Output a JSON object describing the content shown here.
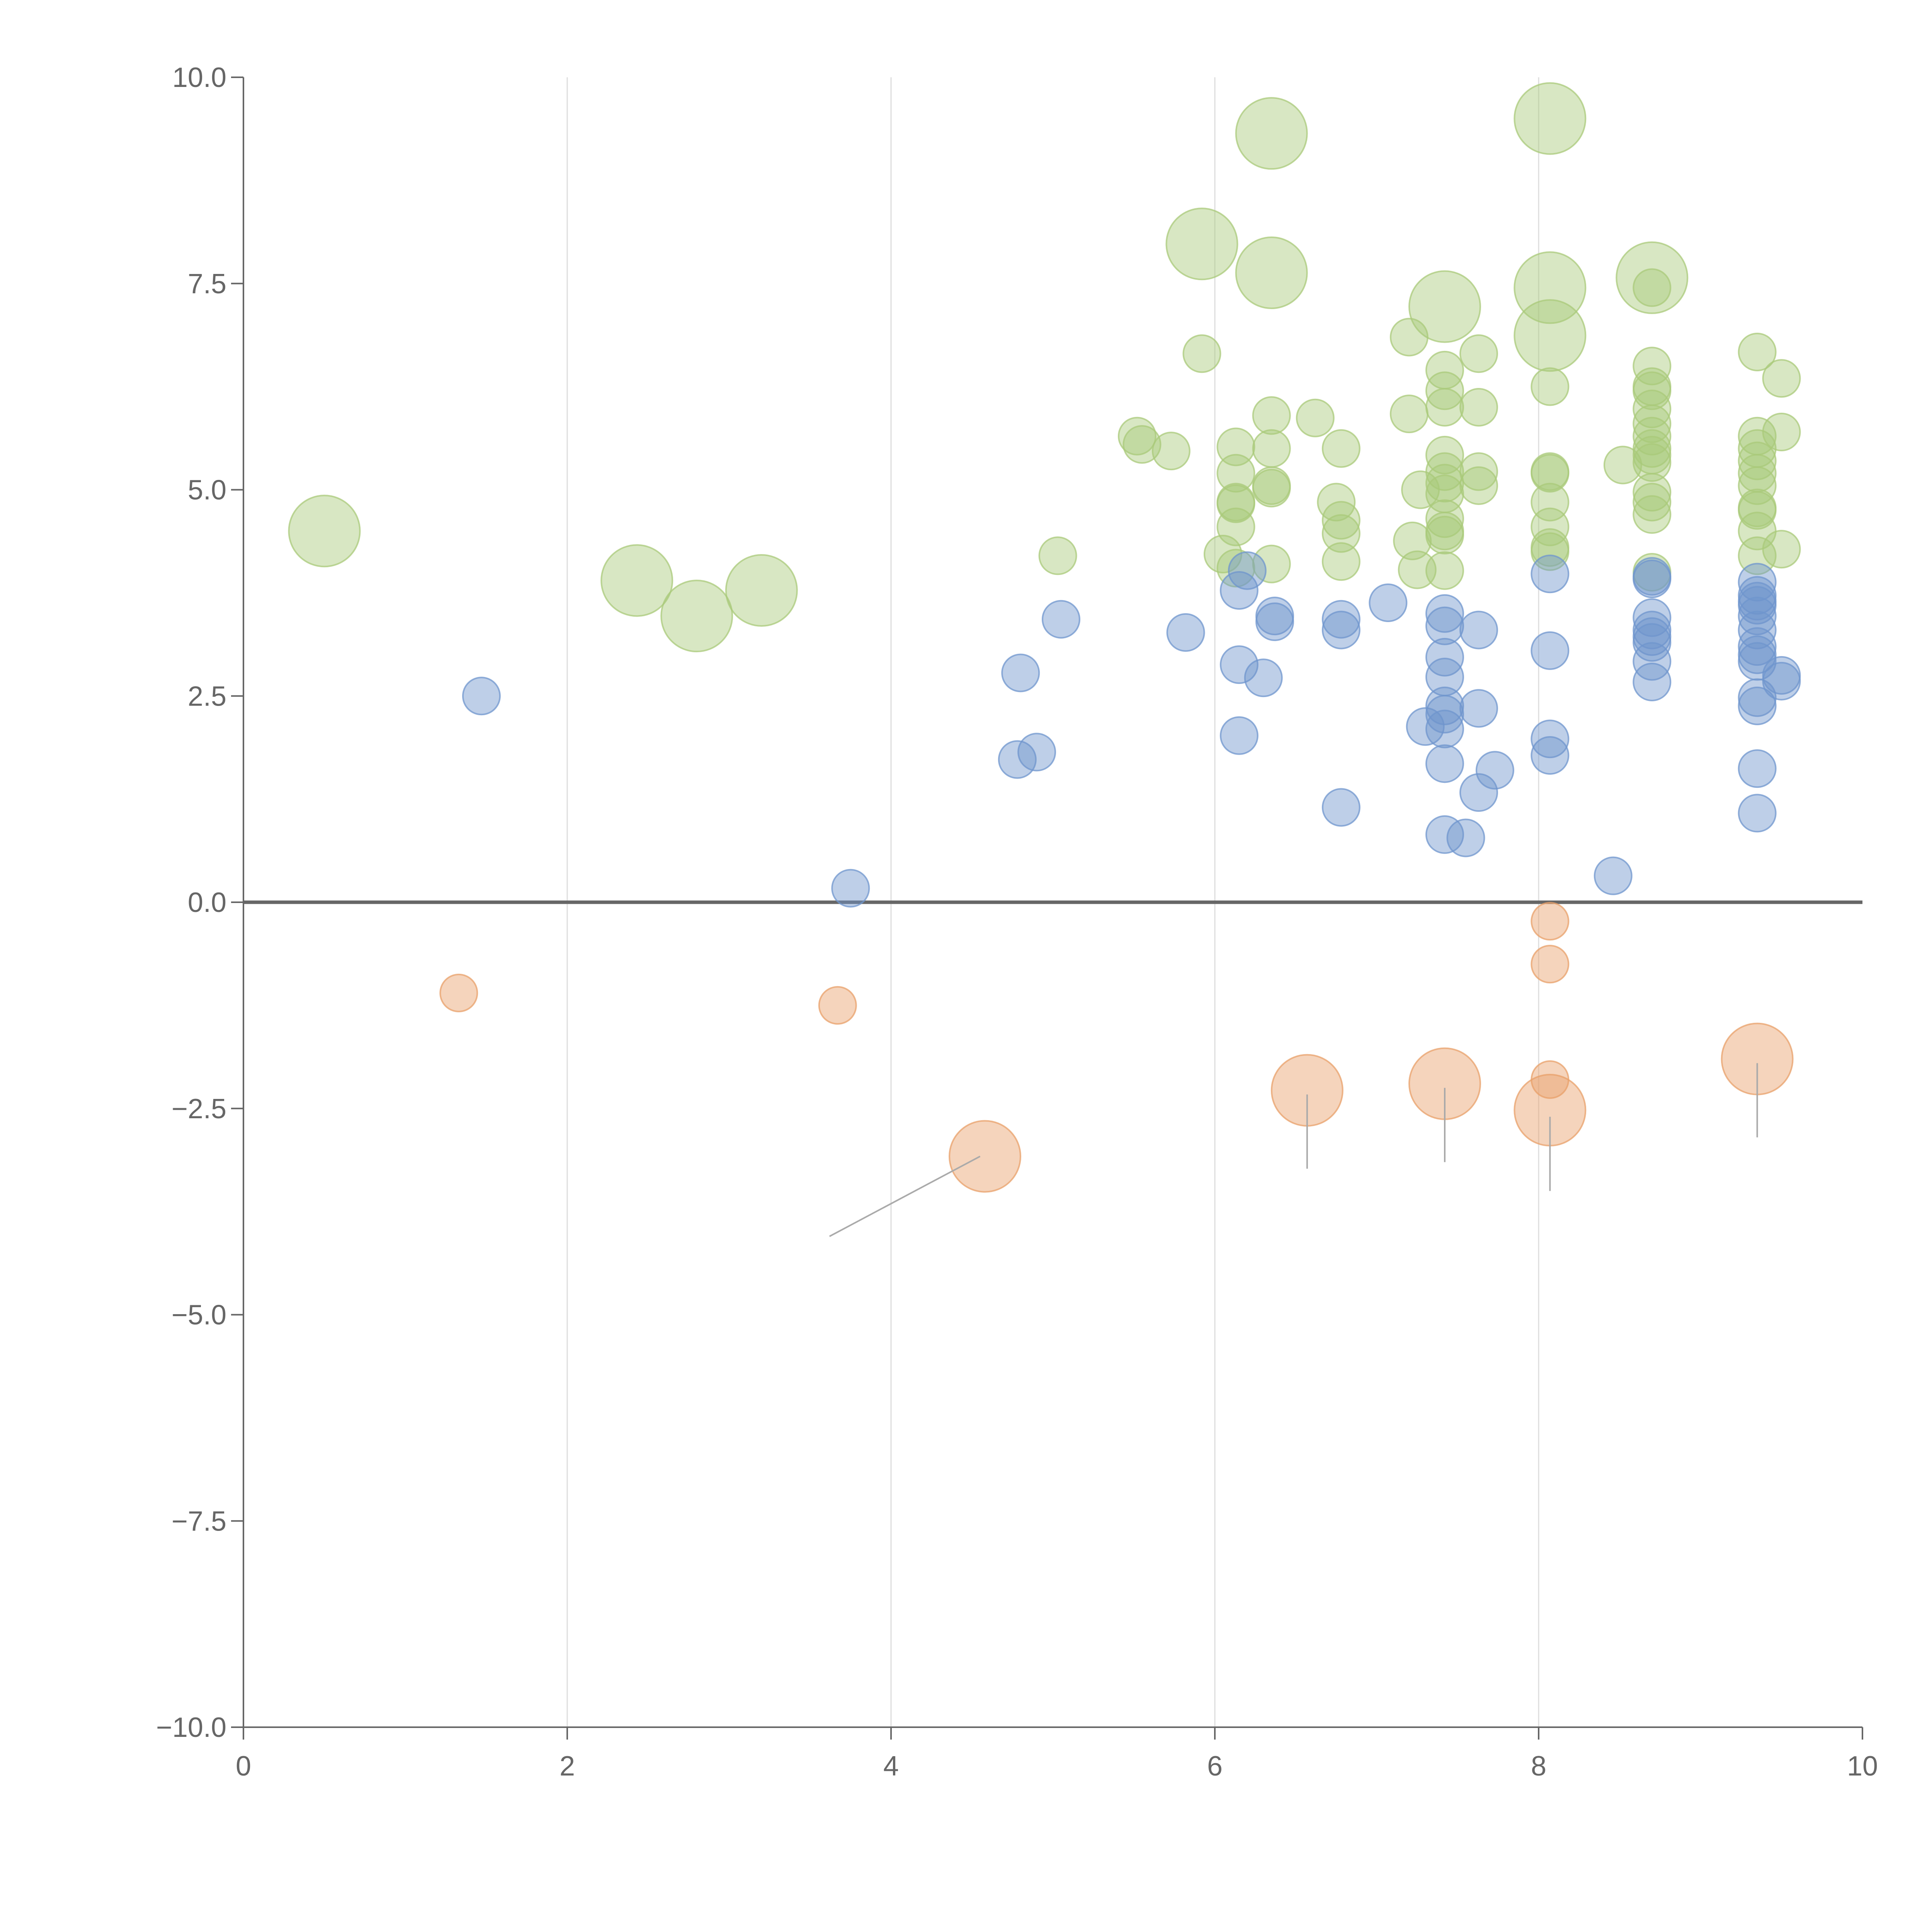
{
  "chart_data": {
    "type": "scatter",
    "variant": "bubble",
    "title": "",
    "xlabel": "",
    "ylabel": "",
    "xlim": [
      0,
      10
    ],
    "ylim": [
      -10,
      10
    ],
    "x_ticks": [
      0,
      2,
      4,
      6,
      8,
      10
    ],
    "y_ticks": [
      -10,
      -7.5,
      -5,
      -2.5,
      0,
      2.5,
      5,
      7.5,
      10
    ],
    "x_tick_labels": [
      "0",
      "2",
      "4",
      "6",
      "8",
      "10"
    ],
    "y_tick_labels": [
      "−10.0",
      "−7.5",
      "−5.0",
      "−2.5",
      "0.0",
      "2.5",
      "5.0",
      "7.5",
      "10.0"
    ],
    "grid": "vertical",
    "legend": "none",
    "colors": {
      "green": "#a9c97a",
      "blue": "#6f95cd",
      "orange": "#e8a06a",
      "axis": "#666666",
      "grid": "#dddddd"
    },
    "series": [
      {
        "name": "green",
        "color": "#a9c97a",
        "points": [
          {
            "x": 0.5,
            "y": 4.5,
            "s": 3
          },
          {
            "x": 2.43,
            "y": 3.9,
            "s": 3
          },
          {
            "x": 2.8,
            "y": 3.47,
            "s": 3
          },
          {
            "x": 3.2,
            "y": 3.78,
            "s": 3
          },
          {
            "x": 6.35,
            "y": 9.32,
            "s": 3
          },
          {
            "x": 5.92,
            "y": 7.98,
            "s": 3
          },
          {
            "x": 6.35,
            "y": 7.63,
            "s": 3
          },
          {
            "x": 7.42,
            "y": 7.22,
            "s": 3
          },
          {
            "x": 8.07,
            "y": 9.5,
            "s": 3
          },
          {
            "x": 8.07,
            "y": 7.45,
            "s": 3
          },
          {
            "x": 8.07,
            "y": 6.87,
            "s": 3
          },
          {
            "x": 8.7,
            "y": 7.57,
            "s": 3
          },
          {
            "x": 5.92,
            "y": 6.65,
            "s": 1
          },
          {
            "x": 5.52,
            "y": 5.65,
            "s": 1
          },
          {
            "x": 5.55,
            "y": 5.55,
            "s": 1
          },
          {
            "x": 5.73,
            "y": 5.47,
            "s": 1
          },
          {
            "x": 6.13,
            "y": 5.52,
            "s": 1
          },
          {
            "x": 6.13,
            "y": 5.2,
            "s": 1
          },
          {
            "x": 6.13,
            "y": 4.85,
            "s": 1
          },
          {
            "x": 6.13,
            "y": 4.83,
            "s": 1
          },
          {
            "x": 6.13,
            "y": 4.55,
            "s": 1
          },
          {
            "x": 6.05,
            "y": 4.22,
            "s": 1
          },
          {
            "x": 6.13,
            "y": 4.05,
            "s": 1
          },
          {
            "x": 6.35,
            "y": 5.9,
            "s": 1
          },
          {
            "x": 6.35,
            "y": 5.5,
            "s": 1
          },
          {
            "x": 6.35,
            "y": 5.05,
            "s": 1
          },
          {
            "x": 6.35,
            "y": 5.02,
            "s": 1
          },
          {
            "x": 6.35,
            "y": 4.1,
            "s": 1
          },
          {
            "x": 6.62,
            "y": 5.87,
            "s": 1
          },
          {
            "x": 6.78,
            "y": 5.5,
            "s": 1
          },
          {
            "x": 6.75,
            "y": 4.85,
            "s": 1
          },
          {
            "x": 6.78,
            "y": 4.63,
            "s": 1
          },
          {
            "x": 6.78,
            "y": 4.47,
            "s": 1
          },
          {
            "x": 6.78,
            "y": 4.13,
            "s": 1
          },
          {
            "x": 5.03,
            "y": 4.2,
            "s": 1
          },
          {
            "x": 7.2,
            "y": 6.85,
            "s": 1
          },
          {
            "x": 7.2,
            "y": 5.92,
            "s": 1
          },
          {
            "x": 7.27,
            "y": 5.0,
            "s": 1
          },
          {
            "x": 7.22,
            "y": 4.38,
            "s": 1
          },
          {
            "x": 7.25,
            "y": 4.03,
            "s": 1
          },
          {
            "x": 7.42,
            "y": 6.45,
            "s": 1
          },
          {
            "x": 7.42,
            "y": 6.2,
            "s": 1
          },
          {
            "x": 7.42,
            "y": 6.0,
            "s": 1
          },
          {
            "x": 7.42,
            "y": 5.42,
            "s": 1
          },
          {
            "x": 7.42,
            "y": 5.22,
            "s": 1
          },
          {
            "x": 7.42,
            "y": 5.08,
            "s": 1
          },
          {
            "x": 7.42,
            "y": 4.95,
            "s": 1
          },
          {
            "x": 7.42,
            "y": 4.65,
            "s": 1
          },
          {
            "x": 7.42,
            "y": 4.5,
            "s": 1
          },
          {
            "x": 7.42,
            "y": 4.45,
            "s": 1
          },
          {
            "x": 7.42,
            "y": 4.02,
            "s": 1
          },
          {
            "x": 7.63,
            "y": 6.65,
            "s": 1
          },
          {
            "x": 7.63,
            "y": 6.0,
            "s": 1
          },
          {
            "x": 7.63,
            "y": 5.22,
            "s": 1
          },
          {
            "x": 7.63,
            "y": 5.05,
            "s": 1
          },
          {
            "x": 8.07,
            "y": 6.25,
            "s": 1
          },
          {
            "x": 8.07,
            "y": 5.22,
            "s": 1
          },
          {
            "x": 8.07,
            "y": 5.2,
            "s": 1
          },
          {
            "x": 8.07,
            "y": 4.85,
            "s": 1
          },
          {
            "x": 8.07,
            "y": 4.55,
            "s": 1
          },
          {
            "x": 8.07,
            "y": 4.3,
            "s": 1
          },
          {
            "x": 8.07,
            "y": 4.25,
            "s": 1
          },
          {
            "x": 8.52,
            "y": 5.3,
            "s": 1
          },
          {
            "x": 8.7,
            "y": 7.45,
            "s": 1
          },
          {
            "x": 8.7,
            "y": 6.5,
            "s": 1
          },
          {
            "x": 8.7,
            "y": 6.25,
            "s": 1
          },
          {
            "x": 8.7,
            "y": 6.2,
            "s": 1
          },
          {
            "x": 8.7,
            "y": 5.98,
            "s": 1
          },
          {
            "x": 8.7,
            "y": 5.8,
            "s": 1
          },
          {
            "x": 8.7,
            "y": 5.65,
            "s": 1
          },
          {
            "x": 8.7,
            "y": 5.5,
            "s": 1
          },
          {
            "x": 8.7,
            "y": 5.42,
            "s": 1
          },
          {
            "x": 8.7,
            "y": 5.33,
            "s": 1
          },
          {
            "x": 8.7,
            "y": 4.97,
            "s": 1
          },
          {
            "x": 8.7,
            "y": 4.85,
            "s": 1
          },
          {
            "x": 8.7,
            "y": 4.7,
            "s": 1
          },
          {
            "x": 8.7,
            "y": 4.0,
            "s": 1
          },
          {
            "x": 9.35,
            "y": 6.67,
            "s": 1
          },
          {
            "x": 9.35,
            "y": 5.65,
            "s": 1
          },
          {
            "x": 9.35,
            "y": 5.5,
            "s": 1
          },
          {
            "x": 9.35,
            "y": 5.35,
            "s": 1
          },
          {
            "x": 9.35,
            "y": 5.2,
            "s": 1
          },
          {
            "x": 9.35,
            "y": 5.05,
            "s": 1
          },
          {
            "x": 9.35,
            "y": 4.78,
            "s": 1
          },
          {
            "x": 9.35,
            "y": 4.75,
            "s": 1
          },
          {
            "x": 9.35,
            "y": 4.5,
            "s": 1
          },
          {
            "x": 9.35,
            "y": 4.2,
            "s": 1
          },
          {
            "x": 9.5,
            "y": 6.35,
            "s": 1
          },
          {
            "x": 9.5,
            "y": 5.7,
            "s": 1
          },
          {
            "x": 9.5,
            "y": 4.28,
            "s": 1
          }
        ]
      },
      {
        "name": "blue",
        "color": "#6f95cd",
        "points": [
          {
            "x": 1.47,
            "y": 2.5,
            "s": 1
          },
          {
            "x": 3.75,
            "y": 0.17,
            "s": 1
          },
          {
            "x": 4.8,
            "y": 2.78,
            "s": 1
          },
          {
            "x": 4.78,
            "y": 1.73,
            "s": 1
          },
          {
            "x": 4.9,
            "y": 1.82,
            "s": 1
          },
          {
            "x": 5.05,
            "y": 3.43,
            "s": 1
          },
          {
            "x": 5.82,
            "y": 3.27,
            "s": 1
          },
          {
            "x": 6.15,
            "y": 3.78,
            "s": 1
          },
          {
            "x": 6.2,
            "y": 4.02,
            "s": 1
          },
          {
            "x": 6.15,
            "y": 2.88,
            "s": 1
          },
          {
            "x": 6.15,
            "y": 2.02,
            "s": 1
          },
          {
            "x": 6.3,
            "y": 2.72,
            "s": 1
          },
          {
            "x": 6.37,
            "y": 3.47,
            "s": 1
          },
          {
            "x": 6.37,
            "y": 3.4,
            "s": 1
          },
          {
            "x": 6.78,
            "y": 3.43,
            "s": 1
          },
          {
            "x": 6.78,
            "y": 3.3,
            "s": 1
          },
          {
            "x": 6.78,
            "y": 1.15,
            "s": 1
          },
          {
            "x": 7.07,
            "y": 3.63,
            "s": 1
          },
          {
            "x": 7.3,
            "y": 2.13,
            "s": 1
          },
          {
            "x": 7.42,
            "y": 3.5,
            "s": 1
          },
          {
            "x": 7.42,
            "y": 3.35,
            "s": 1
          },
          {
            "x": 7.42,
            "y": 2.97,
            "s": 1
          },
          {
            "x": 7.42,
            "y": 2.73,
            "s": 1
          },
          {
            "x": 7.42,
            "y": 2.38,
            "s": 1
          },
          {
            "x": 7.42,
            "y": 2.28,
            "s": 1
          },
          {
            "x": 7.42,
            "y": 2.1,
            "s": 1
          },
          {
            "x": 7.42,
            "y": 1.68,
            "s": 1
          },
          {
            "x": 7.42,
            "y": 0.82,
            "s": 1
          },
          {
            "x": 7.55,
            "y": 0.78,
            "s": 1
          },
          {
            "x": 7.63,
            "y": 3.3,
            "s": 1
          },
          {
            "x": 7.63,
            "y": 2.35,
            "s": 1
          },
          {
            "x": 7.63,
            "y": 1.33,
            "s": 1
          },
          {
            "x": 7.73,
            "y": 1.6,
            "s": 1
          },
          {
            "x": 8.07,
            "y": 3.98,
            "s": 1
          },
          {
            "x": 8.07,
            "y": 3.05,
            "s": 1
          },
          {
            "x": 8.07,
            "y": 1.98,
            "s": 1
          },
          {
            "x": 8.07,
            "y": 1.78,
            "s": 1
          },
          {
            "x": 8.46,
            "y": 0.32,
            "s": 1
          },
          {
            "x": 8.7,
            "y": 3.95,
            "s": 1
          },
          {
            "x": 8.7,
            "y": 3.92,
            "s": 1
          },
          {
            "x": 8.7,
            "y": 3.45,
            "s": 1
          },
          {
            "x": 8.7,
            "y": 3.3,
            "s": 1
          },
          {
            "x": 8.7,
            "y": 3.22,
            "s": 1
          },
          {
            "x": 8.7,
            "y": 3.15,
            "s": 1
          },
          {
            "x": 8.7,
            "y": 2.92,
            "s": 1
          },
          {
            "x": 8.7,
            "y": 2.67,
            "s": 1
          },
          {
            "x": 9.35,
            "y": 3.88,
            "s": 1
          },
          {
            "x": 9.35,
            "y": 3.72,
            "s": 1
          },
          {
            "x": 9.35,
            "y": 3.65,
            "s": 1
          },
          {
            "x": 9.35,
            "y": 3.6,
            "s": 1
          },
          {
            "x": 9.35,
            "y": 3.47,
            "s": 1
          },
          {
            "x": 9.35,
            "y": 3.3,
            "s": 1
          },
          {
            "x": 9.35,
            "y": 3.1,
            "s": 1
          },
          {
            "x": 9.35,
            "y": 3.0,
            "s": 1
          },
          {
            "x": 9.35,
            "y": 2.92,
            "s": 1
          },
          {
            "x": 9.35,
            "y": 2.48,
            "s": 1
          },
          {
            "x": 9.35,
            "y": 2.38,
            "s": 1
          },
          {
            "x": 9.35,
            "y": 1.62,
            "s": 1
          },
          {
            "x": 9.35,
            "y": 1.08,
            "s": 1
          },
          {
            "x": 9.5,
            "y": 2.75,
            "s": 1
          },
          {
            "x": 9.5,
            "y": 2.68,
            "s": 1
          }
        ]
      },
      {
        "name": "orange",
        "color": "#e8a06a",
        "points": [
          {
            "x": 1.33,
            "y": -1.1,
            "s": 1
          },
          {
            "x": 3.67,
            "y": -1.25,
            "s": 1
          },
          {
            "x": 4.58,
            "y": -3.08,
            "s": 3
          },
          {
            "x": 6.57,
            "y": -2.28,
            "s": 3
          },
          {
            "x": 7.42,
            "y": -2.2,
            "s": 3
          },
          {
            "x": 8.07,
            "y": -0.23,
            "s": 1
          },
          {
            "x": 8.07,
            "y": -0.75,
            "s": 1
          },
          {
            "x": 8.07,
            "y": -2.15,
            "s": 1
          },
          {
            "x": 8.07,
            "y": -2.52,
            "s": 3
          },
          {
            "x": 9.35,
            "y": -1.9,
            "s": 3
          }
        ]
      }
    ],
    "annotations": [
      {
        "text": "",
        "from": [
          4.55,
          -3.08
        ],
        "to": [
          3.62,
          -4.05
        ],
        "style": "grey"
      },
      {
        "text": "",
        "from": [
          6.57,
          -2.33
        ],
        "to": [
          6.57,
          -3.23
        ],
        "style": "grey"
      },
      {
        "text": "",
        "from": [
          7.42,
          -2.25
        ],
        "to": [
          7.42,
          -3.15
        ],
        "style": "grey"
      },
      {
        "text": "",
        "from": [
          8.07,
          -2.6
        ],
        "to": [
          8.07,
          -3.5
        ],
        "style": "grey"
      },
      {
        "text": "",
        "from": [
          9.35,
          -1.95
        ],
        "to": [
          9.35,
          -2.85
        ],
        "style": "grey"
      }
    ]
  }
}
